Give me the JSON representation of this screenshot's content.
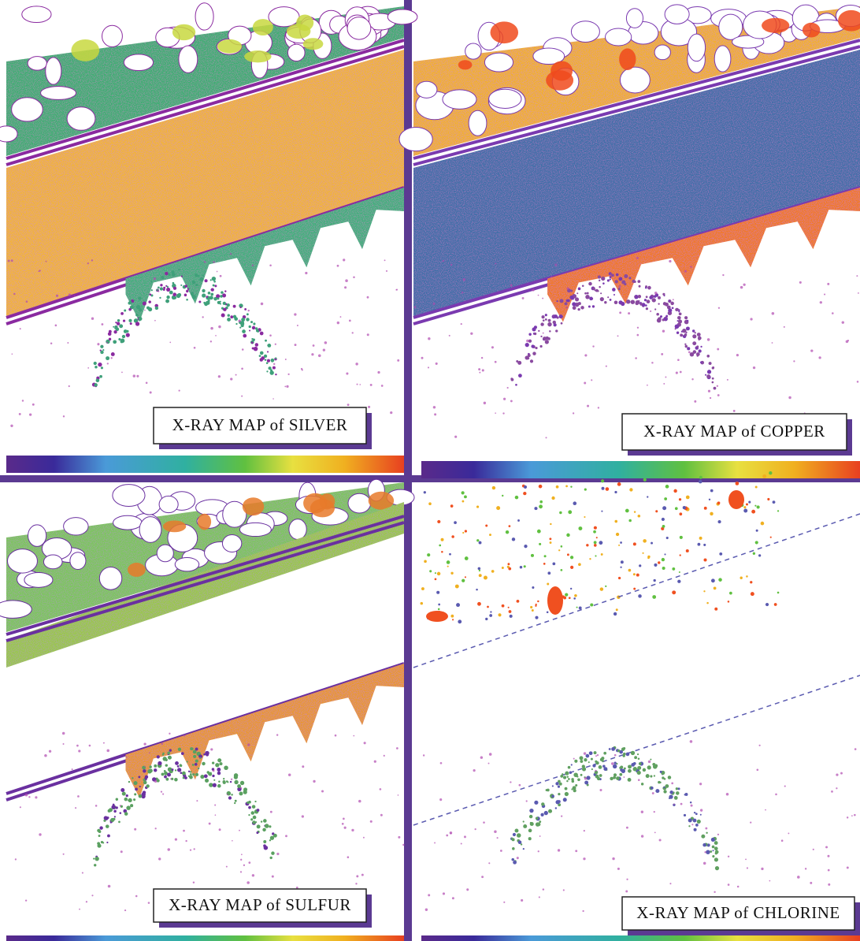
{
  "panels": [
    {
      "label": "X-RAY MAP of SILVER"
    },
    {
      "label": "X-RAY MAP of COPPER"
    },
    {
      "label": "X-RAY MAP of SULFUR"
    },
    {
      "label": "X-RAY MAP of CHLORINE"
    }
  ]
}
